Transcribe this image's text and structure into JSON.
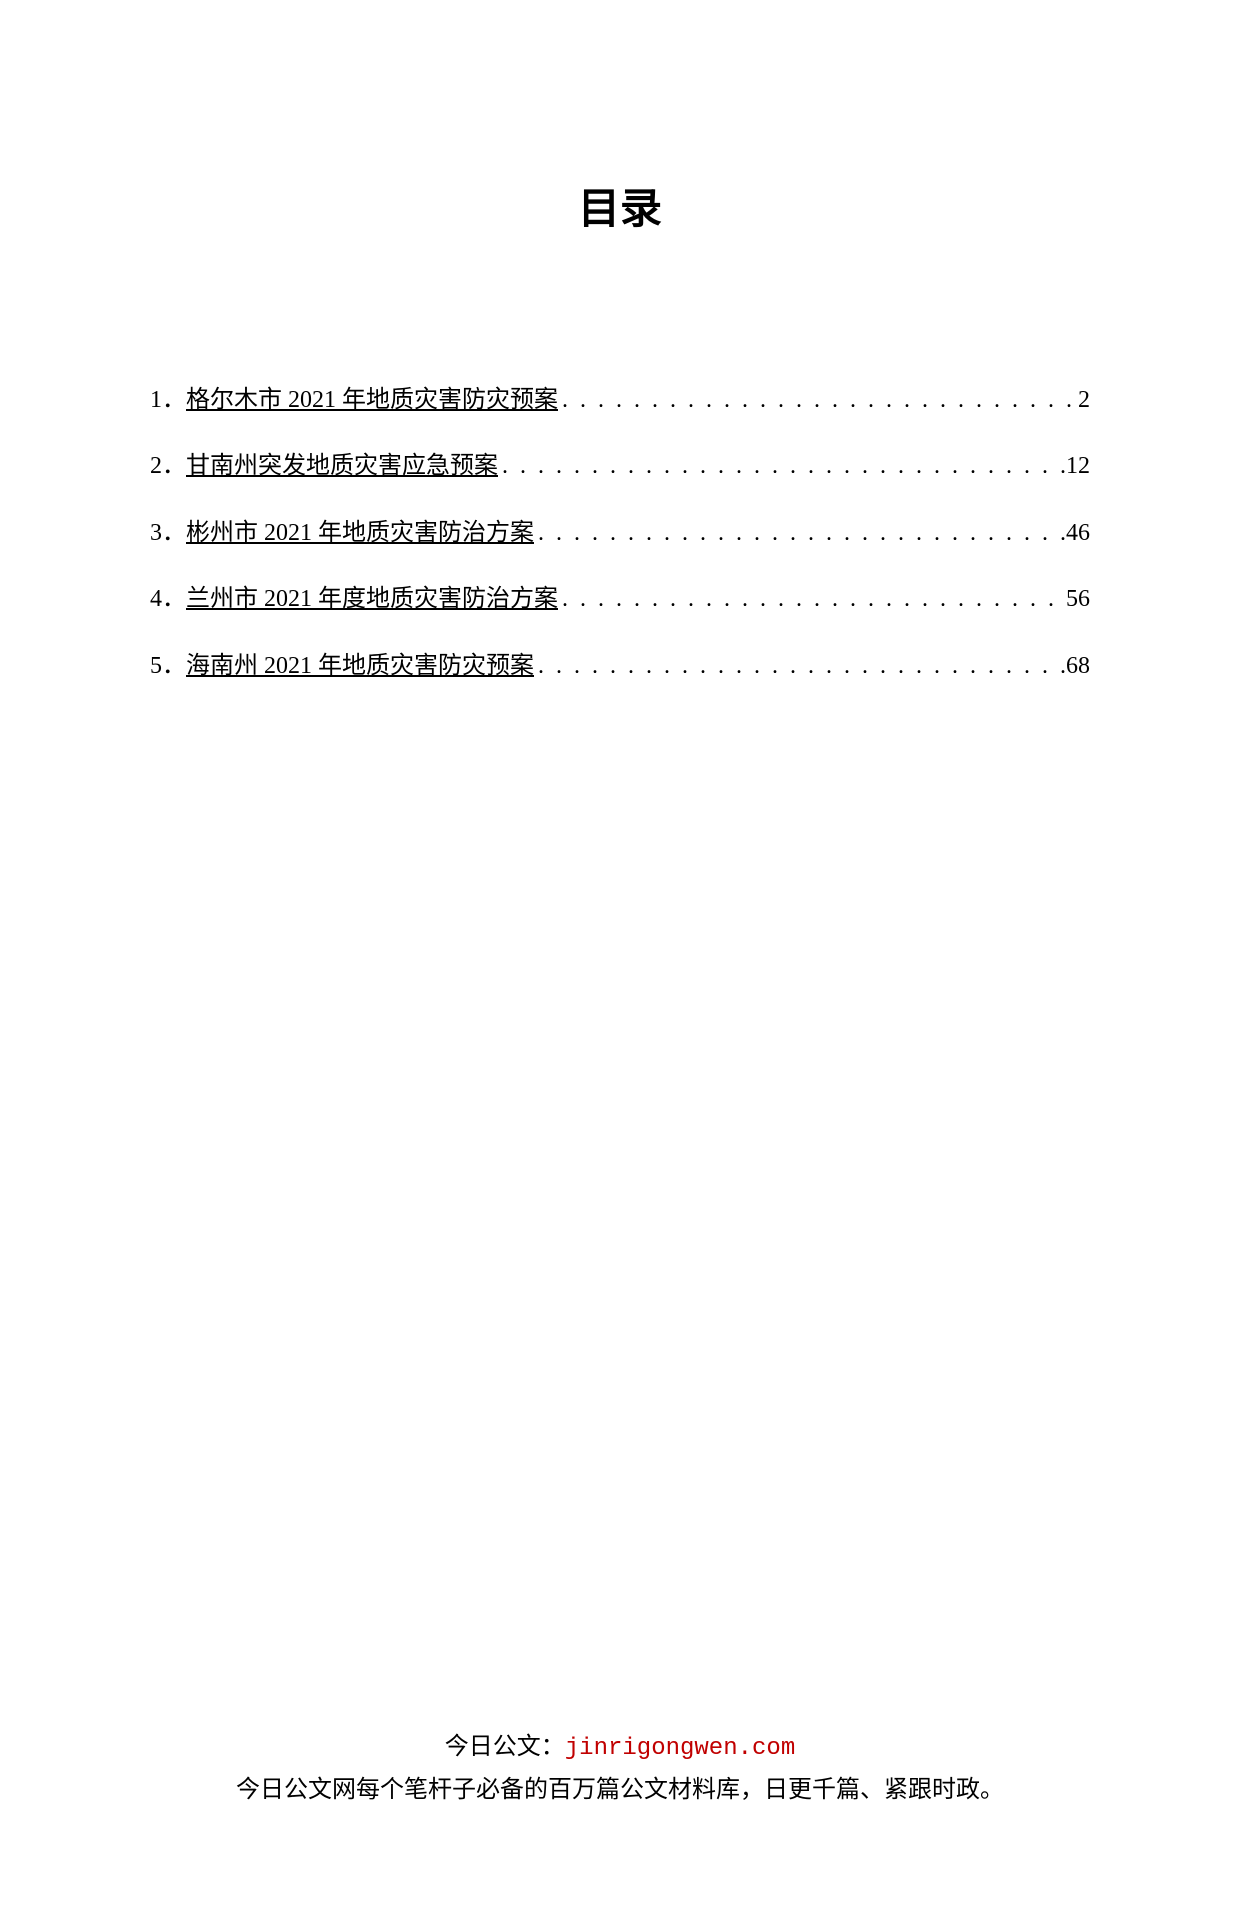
{
  "title": "目录",
  "toc": {
    "entries": [
      {
        "number": "1．",
        "title": "格尔木市 2021 年地质灾害防灾预案",
        "page": "2"
      },
      {
        "number": "2．",
        "title": "甘南州突发地质灾害应急预案",
        "page": "12"
      },
      {
        "number": "3．",
        "title": "彬州市 2021 年地质灾害防治方案",
        "page": "46"
      },
      {
        "number": "4．",
        "title": "兰州市 2021 年度地质灾害防治方案",
        "page": "56"
      },
      {
        "number": "5．",
        "title": "海南州 2021 年地质灾害防灾预案",
        "page": "68"
      }
    ]
  },
  "footer": {
    "prefix": "今日公文：",
    "url": "jinrigongwen.com",
    "tagline": "今日公文网每个笔杆子必备的百万篇公文材料库，日更千篇、紧跟时政。"
  },
  "colors": {
    "text": "#000000",
    "url": "#c00000",
    "background": "#ffffff"
  },
  "typography": {
    "title_fontsize": 42,
    "body_fontsize": 24,
    "title_font": "SimHei",
    "body_font": "SimSun"
  }
}
